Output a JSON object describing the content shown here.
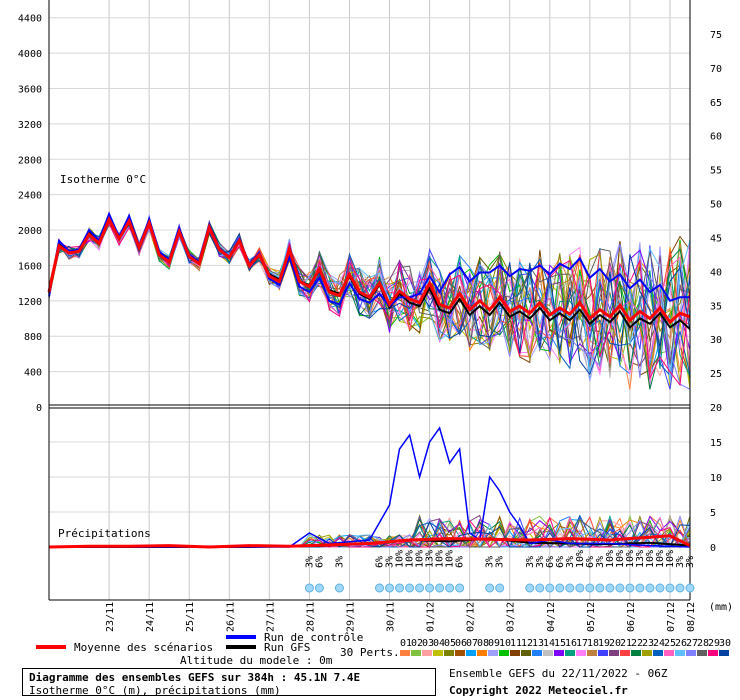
{
  "chart_data": [
    {
      "type": "line",
      "panel": "isotherm",
      "annotation": "Isotherme 0°C",
      "ylim_left": [
        0,
        4600
      ],
      "ylim_right": [
        20,
        80
      ],
      "yticks_left": [
        0,
        400,
        800,
        1200,
        1600,
        2000,
        2400,
        2800,
        3200,
        3600,
        4000,
        4400
      ],
      "yticks_right": [
        20,
        25,
        30,
        35,
        40,
        45,
        50,
        55,
        60,
        65,
        70,
        75
      ],
      "x_range_hours": [
        0,
        384
      ],
      "series": [
        {
          "name": "Moyenne des scénarios",
          "color": "#ff0000",
          "x": [
            0,
            6,
            12,
            18,
            24,
            30,
            36,
            42,
            48,
            54,
            60,
            66,
            72,
            78,
            84,
            90,
            96,
            102,
            108,
            114,
            120,
            126,
            132,
            138,
            144,
            150,
            156,
            162,
            168,
            174,
            180,
            186,
            192,
            198,
            204,
            210,
            216,
            222,
            228,
            234,
            240,
            246,
            252,
            258,
            264,
            270,
            276,
            282,
            288,
            294,
            300,
            306,
            312,
            318,
            324,
            330,
            336,
            342,
            348,
            354,
            360,
            366,
            372,
            378,
            384
          ],
          "y": [
            1300,
            1820,
            1740,
            1760,
            1950,
            1850,
            2120,
            1900,
            2100,
            1800,
            2080,
            1720,
            1640,
            1980,
            1700,
            1620,
            2030,
            1780,
            1690,
            1880,
            1600,
            1720,
            1480,
            1420,
            1780,
            1420,
            1360,
            1560,
            1300,
            1260,
            1500,
            1300,
            1240,
            1400,
            1160,
            1310,
            1220,
            1180,
            1400,
            1160,
            1120,
            1280,
            1100,
            1200,
            1100,
            1240,
            1080,
            1140,
            1060,
            1180,
            1040,
            1120,
            1050,
            1180,
            1000,
            1100,
            1020,
            1150,
            980,
            1080,
            1000,
            1120,
            960,
            1060,
            1020
          ]
        },
        {
          "name": "Run de contrôle",
          "color": "#0000ff",
          "x": [
            0,
            6,
            12,
            18,
            24,
            30,
            36,
            42,
            48,
            54,
            60,
            66,
            72,
            78,
            84,
            90,
            96,
            102,
            108,
            114,
            120,
            126,
            132,
            138,
            144,
            150,
            156,
            162,
            168,
            174,
            180,
            186,
            192,
            198,
            204,
            210,
            216,
            222,
            228,
            234,
            240,
            246,
            252,
            258,
            264,
            270,
            276,
            282,
            288,
            294,
            300,
            306,
            312,
            318,
            324,
            330,
            336,
            342,
            348,
            354,
            360,
            366,
            372,
            378,
            384
          ],
          "y": [
            1250,
            1880,
            1760,
            1780,
            2000,
            1880,
            2180,
            1920,
            2160,
            1820,
            2120,
            1760,
            1660,
            2020,
            1720,
            1640,
            2060,
            1800,
            1700,
            1900,
            1620,
            1740,
            1450,
            1380,
            1700,
            1360,
            1300,
            1460,
            1200,
            1160,
            1400,
            1220,
            1180,
            1280,
            1140,
            1240,
            1240,
            1280,
            1480,
            1300,
            1500,
            1580,
            1420,
            1520,
            1520,
            1600,
            1480,
            1560,
            1540,
            1600,
            1500,
            1620,
            1560,
            1680,
            1460,
            1560,
            1420,
            1500,
            1340,
            1440,
            1300,
            1380,
            1200,
            1240,
            1240
          ]
        },
        {
          "name": "Run GFS",
          "color": "#000000",
          "x": [
            0,
            6,
            12,
            18,
            24,
            30,
            36,
            42,
            48,
            54,
            60,
            66,
            72,
            78,
            84,
            90,
            96,
            102,
            108,
            114,
            120,
            126,
            132,
            138,
            144,
            150,
            156,
            162,
            168,
            174,
            180,
            186,
            192,
            198,
            204,
            210,
            216,
            222,
            228,
            234,
            240,
            246,
            252,
            258,
            264,
            270,
            276,
            282,
            288,
            294,
            300,
            306,
            312,
            318,
            324,
            330,
            336,
            342,
            348,
            354,
            360,
            366,
            372,
            378,
            384
          ],
          "y": [
            1280,
            1840,
            1740,
            1760,
            1980,
            1860,
            2140,
            1900,
            2120,
            1800,
            2100,
            1740,
            1650,
            2000,
            1710,
            1630,
            2040,
            1790,
            1700,
            1890,
            1610,
            1730,
            1500,
            1440,
            1760,
            1420,
            1380,
            1540,
            1320,
            1280,
            1480,
            1280,
            1220,
            1380,
            1120,
            1280,
            1180,
            1140,
            1340,
            1100,
            1060,
            1220,
            1040,
            1140,
            1040,
            1180,
            1020,
            1080,
            1000,
            1120,
            980,
            1060,
            980,
            1100,
            940,
            1040,
            960,
            1080,
            900,
            1000,
            940,
            1060,
            900,
            980,
            880
          ]
        }
      ]
    },
    {
      "type": "line",
      "panel": "precipitation",
      "annotation": "Précipitations",
      "ylim_right": [
        0,
        20
      ],
      "yticks_right": [
        0,
        5,
        10,
        15,
        20
      ],
      "series": [
        {
          "name": "Moyenne des scénarios",
          "color": "#ff0000",
          "x": [
            0,
            24,
            48,
            72,
            96,
            120,
            144,
            168,
            192,
            216,
            240,
            264,
            288,
            312,
            336,
            360,
            372,
            384
          ],
          "y": [
            0,
            0.1,
            0.1,
            0.2,
            0,
            0.2,
            0.1,
            0.3,
            0.5,
            1.0,
            1.2,
            1.1,
            1.0,
            1.2,
            1.0,
            1.4,
            1.6,
            0.2
          ]
        },
        {
          "name": "Run de contrôle",
          "color": "#0000ff",
          "x": [
            0,
            120,
            144,
            156,
            168,
            192,
            204,
            210,
            216,
            222,
            228,
            234,
            240,
            246,
            252,
            258,
            264,
            270,
            276,
            282,
            288,
            300,
            312,
            336,
            360,
            384
          ],
          "y": [
            0,
            0,
            0,
            2,
            0.5,
            1,
            6,
            14,
            16,
            10,
            15,
            17,
            12,
            14,
            2,
            1,
            10,
            8,
            5,
            3,
            0.5,
            1,
            0.5,
            0.5,
            0.2,
            0
          ]
        },
        {
          "name": "Run GFS",
          "color": "#000000",
          "x": [
            0,
            120,
            168,
            192,
            216,
            240,
            264,
            288,
            312,
            336,
            360,
            384
          ],
          "y": [
            0,
            0,
            0.2,
            0.5,
            1.0,
            0.8,
            1.2,
            0.6,
            0.5,
            0.4,
            0.6,
            0.2
          ]
        }
      ]
    }
  ],
  "axis": {
    "left_ticks": [
      "4400",
      "4000",
      "3600",
      "3200",
      "2800",
      "2400",
      "2000",
      "1600",
      "1200",
      "800",
      "400",
      "0"
    ],
    "right_ticks_top": [
      "75",
      "70",
      "65",
      "60",
      "55",
      "50",
      "45",
      "40",
      "35",
      "30",
      "25",
      "20"
    ],
    "right_ticks_bottom": [
      "15",
      "10",
      "5",
      "0"
    ],
    "x_labels": [
      {
        "label": "23/11",
        "h": 36
      },
      {
        "label": "24/11",
        "h": 60
      },
      {
        "label": "25/11",
        "h": 84
      },
      {
        "label": "26/11",
        "h": 108
      },
      {
        "label": "27/11",
        "h": 132
      },
      {
        "label": "28/11",
        "h": 156
      },
      {
        "label": "29/11",
        "h": 180
      },
      {
        "label": "30/11",
        "h": 204
      },
      {
        "label": "01/12",
        "h": 228
      },
      {
        "label": "02/12",
        "h": 252
      },
      {
        "label": "03/12",
        "h": 276
      },
      {
        "label": "04/12",
        "h": 300
      },
      {
        "label": "05/12",
        "h": 324
      },
      {
        "label": "06/12",
        "h": 348
      },
      {
        "label": "07/12",
        "h": 372
      },
      {
        "label": "08/12",
        "h": 390
      }
    ],
    "mm_label": "(mm)"
  },
  "labels": {
    "isotherm": "Isotherme 0°C",
    "precip": "Précipitations"
  },
  "legend": {
    "mean": "Moyenne des scénarios",
    "control": "Run de contrôle",
    "gfs": "Run GFS",
    "altitude": "Altitude du modele : 0m",
    "perts": "30 Perts.",
    "pert_numbers": [
      "01",
      "02",
      "03",
      "04",
      "05",
      "06",
      "07",
      "08",
      "09",
      "10",
      "11",
      "12",
      "13",
      "14",
      "15",
      "16",
      "17",
      "18",
      "19",
      "20",
      "21",
      "22",
      "23",
      "24",
      "25",
      "26",
      "27",
      "28",
      "29",
      "30"
    ],
    "pert_colors": [
      "#ff8040",
      "#80c040",
      "#ffa0a0",
      "#c0c000",
      "#808000",
      "#a05000",
      "#00a0ff",
      "#ff8000",
      "#a0a0ff",
      "#00c000",
      "#804000",
      "#606000",
      "#2080ff",
      "#c0c0c0",
      "#8000ff",
      "#00a080",
      "#ff80ff",
      "#c08040",
      "#4040ff",
      "#804080",
      "#ff4040",
      "#008040",
      "#a0a000",
      "#0060c0",
      "#ff60c0",
      "#60c0ff",
      "#8080ff",
      "#606060",
      "#ff0080",
      "#0040a0"
    ]
  },
  "snow": {
    "markers": [
      {
        "h": 156,
        "label": "3%"
      },
      {
        "h": 162,
        "label": "6%"
      },
      {
        "h": 174,
        "label": "3%"
      },
      {
        "h": 198,
        "label": "6%"
      },
      {
        "h": 204,
        "label": "3%"
      },
      {
        "h": 210,
        "label": "10%"
      },
      {
        "h": 216,
        "label": "10%"
      },
      {
        "h": 222,
        "label": "10%"
      },
      {
        "h": 228,
        "label": "13%"
      },
      {
        "h": 234,
        "label": "10%"
      },
      {
        "h": 240,
        "label": "10%"
      },
      {
        "h": 246,
        "label": "6%"
      },
      {
        "h": 264,
        "label": "3%"
      },
      {
        "h": 270,
        "label": "3%"
      },
      {
        "h": 288,
        "label": "3%"
      },
      {
        "h": 294,
        "label": "3%"
      },
      {
        "h": 300,
        "label": "6%"
      },
      {
        "h": 306,
        "label": "6%"
      },
      {
        "h": 312,
        "label": "3%"
      },
      {
        "h": 318,
        "label": "10%"
      },
      {
        "h": 324,
        "label": "6%"
      },
      {
        "h": 330,
        "label": "3%"
      },
      {
        "h": 336,
        "label": "10%"
      },
      {
        "h": 342,
        "label": "10%"
      },
      {
        "h": 348,
        "label": "10%"
      },
      {
        "h": 354,
        "label": "13%"
      },
      {
        "h": 360,
        "label": "10%"
      },
      {
        "h": 366,
        "label": "10%"
      },
      {
        "h": 372,
        "label": "10%"
      },
      {
        "h": 378,
        "label": "3%"
      },
      {
        "h": 384,
        "label": "3%"
      }
    ]
  },
  "title": {
    "line1": "Diagramme des ensembles GEFS sur 384h : 45.1N 7.4E",
    "line2": "Isotherme 0°C (m), précipitations (mm)"
  },
  "footer": {
    "run_info": "Ensemble GEFS du 22/11/2022 - 06Z",
    "copyright": "Copyright 2022 Meteociel.fr"
  }
}
